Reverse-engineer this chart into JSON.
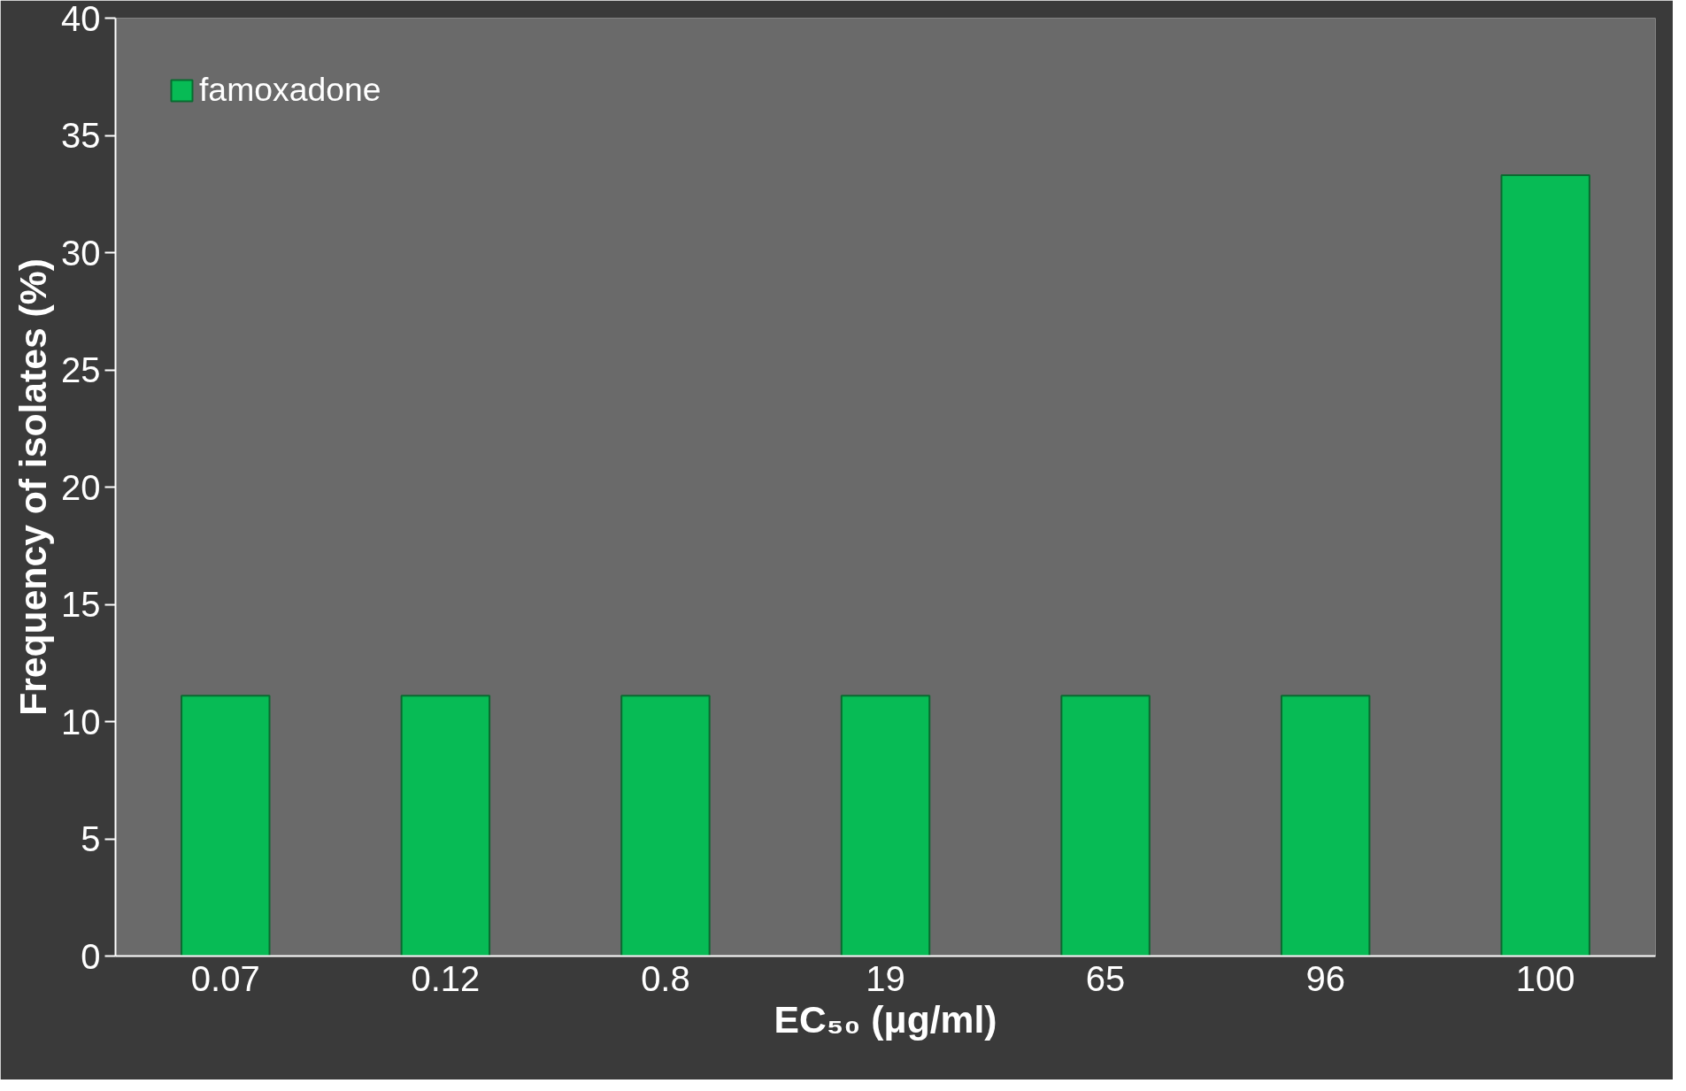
{
  "chart_data": {
    "type": "bar",
    "xlabel": "EC₅₀ (μg/ml)",
    "ylabel": "Frequency of isolates (%)",
    "categories": [
      "0.07",
      "0.12",
      "0.8",
      "19",
      "65",
      "96",
      "100"
    ],
    "series": [
      {
        "name": "famoxadone",
        "color": "#07bb55",
        "values": [
          11.1,
          11.1,
          11.1,
          11.1,
          11.1,
          11.1,
          33.3
        ]
      }
    ],
    "ylim": [
      0,
      40
    ],
    "yticks": [
      0,
      5,
      10,
      15,
      20,
      25,
      30,
      35,
      40
    ],
    "grid": false,
    "legend": "top left"
  }
}
